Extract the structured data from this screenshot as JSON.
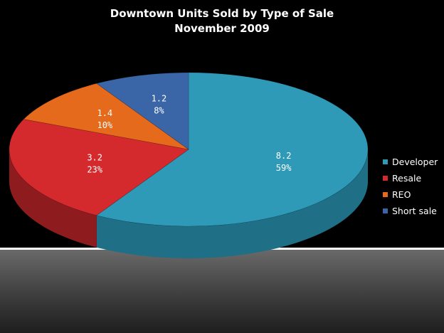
{
  "chart_data": {
    "type": "pie",
    "title": "Downtown Units Sold by Type of Sale",
    "subtitle": "November 2009",
    "categories": [
      "Developer",
      "Resale",
      "REO",
      "Short sale"
    ],
    "values": [
      8.2,
      3.2,
      1.4,
      1.2
    ],
    "percent_labels": [
      "59%",
      "23%",
      "10%",
      "8%"
    ],
    "value_labels": [
      "8.2",
      "3.2",
      "1.4",
      "1.2"
    ],
    "colors": [
      "#2e9ab8",
      "#d42a2e",
      "#e56a1c",
      "#3a66a8"
    ],
    "side_colors": [
      "#1f6f86",
      "#8e1b1e",
      "#a64c12",
      "#27467a"
    ],
    "legend_position": "right",
    "three_d": true
  }
}
